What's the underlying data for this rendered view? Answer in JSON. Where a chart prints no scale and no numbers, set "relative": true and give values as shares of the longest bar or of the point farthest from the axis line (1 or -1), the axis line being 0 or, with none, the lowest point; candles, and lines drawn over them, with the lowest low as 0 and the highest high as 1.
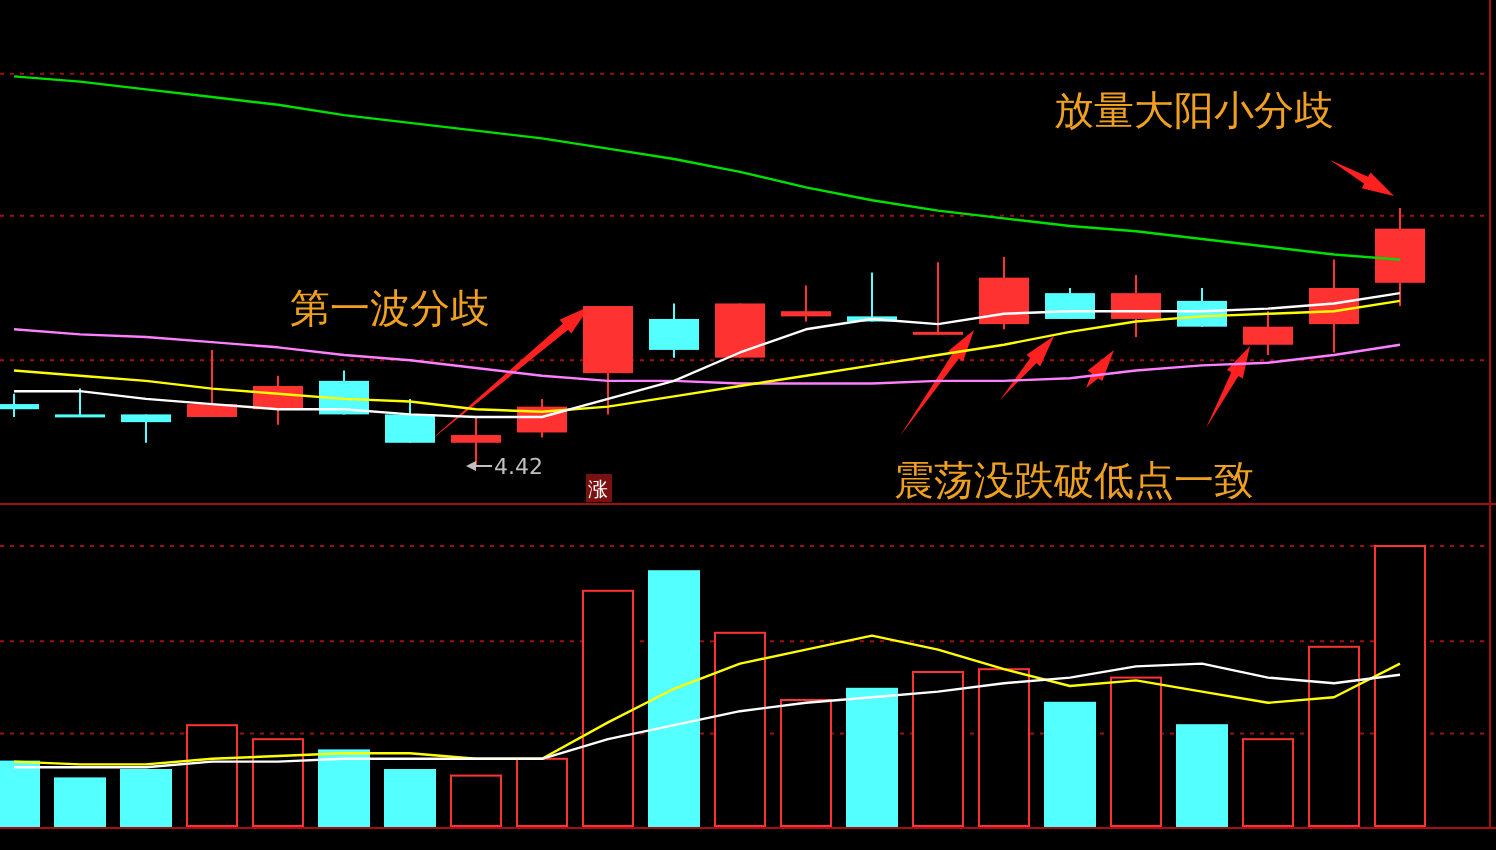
{
  "chart_data": [
    {
      "type": "candlestick",
      "relative": true,
      "categories": [
        null,
        null,
        null,
        null,
        null,
        null,
        null,
        null,
        null,
        null,
        null,
        null,
        null,
        null,
        null,
        null,
        null,
        null,
        null,
        null,
        null,
        null
      ],
      "ohlc": [
        [
          0.24,
          0.28,
          0.19,
          0.22
        ],
        [
          0.2,
          0.3,
          0.19,
          0.19
        ],
        [
          0.2,
          0.2,
          0.09,
          0.17
        ],
        [
          0.19,
          0.45,
          0.19,
          0.24
        ],
        [
          0.22,
          0.35,
          0.16,
          0.31
        ],
        [
          0.33,
          0.37,
          0.2,
          0.2
        ],
        [
          0.2,
          0.26,
          0.09,
          0.09
        ],
        [
          0.09,
          0.19,
          0,
          0.12
        ],
        [
          0.13,
          0.26,
          0.11,
          0.23
        ],
        [
          0.36,
          0.62,
          0.2,
          0.62
        ],
        [
          0.57,
          0.63,
          0.42,
          0.45
        ],
        [
          0.42,
          0.63,
          0.42,
          0.63
        ],
        [
          0.58,
          0.7,
          0.56,
          0.6
        ],
        [
          0.58,
          0.75,
          0.56,
          0.56
        ],
        [
          0.51,
          0.79,
          0.51,
          0.52
        ],
        [
          0.55,
          0.81,
          0.53,
          0.73
        ],
        [
          0.67,
          0.69,
          0.57,
          0.57
        ],
        [
          0.57,
          0.74,
          0.5,
          0.67
        ],
        [
          0.64,
          0.69,
          0.54,
          0.54
        ],
        [
          0.47,
          0.6,
          0.43,
          0.54
        ],
        [
          0.55,
          0.8,
          0.44,
          0.69
        ],
        [
          0.71,
          1,
          0.62,
          0.92
        ]
      ],
      "colors": [
        "#54ffff",
        "#54ffff",
        "#54ffff",
        "#ff3232",
        "#ff3232",
        "#54ffff",
        "#54ffff",
        "#ff3232",
        "#ff3232",
        "#ff3232",
        "#54ffff",
        "#ff3232",
        "#ff3232",
        "#54ffff",
        "#ff3232",
        "#ff3232",
        "#54ffff",
        "#ff3232",
        "#54ffff",
        "#ff3232",
        "#ff3232",
        "#ff3232"
      ],
      "series": [
        {
          "type": "line",
          "color": "#00e000",
          "values": [
            1.51,
            1.49,
            1.46,
            1.43,
            1.4,
            1.36,
            1.33,
            1.3,
            1.27,
            1.23,
            1.19,
            1.14,
            1.08,
            1.03,
            0.99,
            0.96,
            0.93,
            0.91,
            0.88,
            0.85,
            0.82,
            0.8
          ]
        },
        {
          "type": "line",
          "color": "#ff80ff",
          "values": [
            0.53,
            0.51,
            0.5,
            0.48,
            0.46,
            0.43,
            0.41,
            0.38,
            0.35,
            0.33,
            0.33,
            0.32,
            0.32,
            0.32,
            0.33,
            0.33,
            0.34,
            0.37,
            0.39,
            0.4,
            0.43,
            0.47
          ]
        },
        {
          "type": "line",
          "color": "#ffff00",
          "values": [
            0.37,
            0.35,
            0.33,
            0.3,
            0.28,
            0.26,
            0.25,
            0.22,
            0.21,
            0.23,
            0.27,
            0.31,
            0.35,
            0.39,
            0.43,
            0.47,
            0.52,
            0.56,
            0.58,
            0.59,
            0.6,
            0.64
          ]
        },
        {
          "type": "line",
          "color": "#ffffff",
          "values": [
            0.29,
            0.29,
            0.26,
            0.24,
            0.22,
            0.22,
            0.2,
            0.19,
            0.19,
            0.26,
            0.33,
            0.44,
            0.53,
            0.57,
            0.55,
            0.59,
            0.6,
            0.6,
            0.6,
            0.61,
            0.63,
            0.67
          ]
        }
      ],
      "ref_lines": [
        {
          "axis": "y",
          "value": 1.52,
          "color": "#a01010",
          "line_style": "dotted"
        },
        {
          "axis": "y",
          "value": 0.97,
          "color": "#a01010",
          "line_style": "dotted"
        },
        {
          "axis": "y",
          "value": 0.41,
          "color": "#a01010",
          "line_style": "dotted"
        }
      ],
      "annotations": [
        "第一波分歧",
        "放量大阳小分歧",
        "震荡没跌破低点一致",
        "4.42",
        "涨"
      ]
    },
    {
      "type": "bar",
      "relative": true,
      "categories": [
        null,
        null,
        null,
        null,
        null,
        null,
        null,
        null,
        null,
        null,
        null,
        null,
        null,
        null,
        null,
        null,
        null,
        null,
        null,
        null,
        null,
        null
      ],
      "values": [
        0.23,
        0.17,
        0.2,
        0.36,
        0.31,
        0.27,
        0.2,
        0.18,
        0.24,
        0.84,
        0.91,
        0.69,
        0.45,
        0.49,
        0.55,
        0.56,
        0.44,
        0.53,
        0.36,
        0.31,
        0.64,
        1
      ],
      "colors": [
        "#54ffff",
        "#54ffff",
        "#54ffff",
        "#ff3232",
        "#ff3232",
        "#54ffff",
        "#54ffff",
        "#ff3232",
        "#ff3232",
        "#ff3232",
        "#54ffff",
        "#ff3232",
        "#ff3232",
        "#54ffff",
        "#ff3232",
        "#ff3232",
        "#54ffff",
        "#ff3232",
        "#54ffff",
        "#ff3232",
        "#ff3232",
        "#ff3232"
      ],
      "series": [
        {
          "type": "line",
          "color": "#ffff00",
          "values": [
            0.23,
            0.22,
            0.22,
            0.24,
            0.25,
            0.26,
            0.26,
            0.24,
            0.24,
            0.37,
            0.49,
            0.58,
            0.63,
            0.68,
            0.63,
            0.56,
            0.5,
            0.52,
            0.48,
            0.44,
            0.46,
            0.58
          ]
        },
        {
          "type": "line",
          "color": "#ffffff",
          "values": [
            0.21,
            0.21,
            0.21,
            0.23,
            0.23,
            0.24,
            0.24,
            0.24,
            0.24,
            0.31,
            0.36,
            0.41,
            0.44,
            0.46,
            0.48,
            0.51,
            0.53,
            0.57,
            0.58,
            0.53,
            0.51,
            0.54
          ]
        }
      ],
      "ref_lines": [
        {
          "axis": "y",
          "value": 1,
          "color": "#a01010",
          "line_style": "dotted"
        },
        {
          "axis": "y",
          "value": 0.66,
          "color": "#a01010",
          "line_style": "dotted"
        },
        {
          "axis": "y",
          "value": 0.33,
          "color": "#a01010",
          "line_style": "dotted"
        }
      ]
    }
  ]
}
